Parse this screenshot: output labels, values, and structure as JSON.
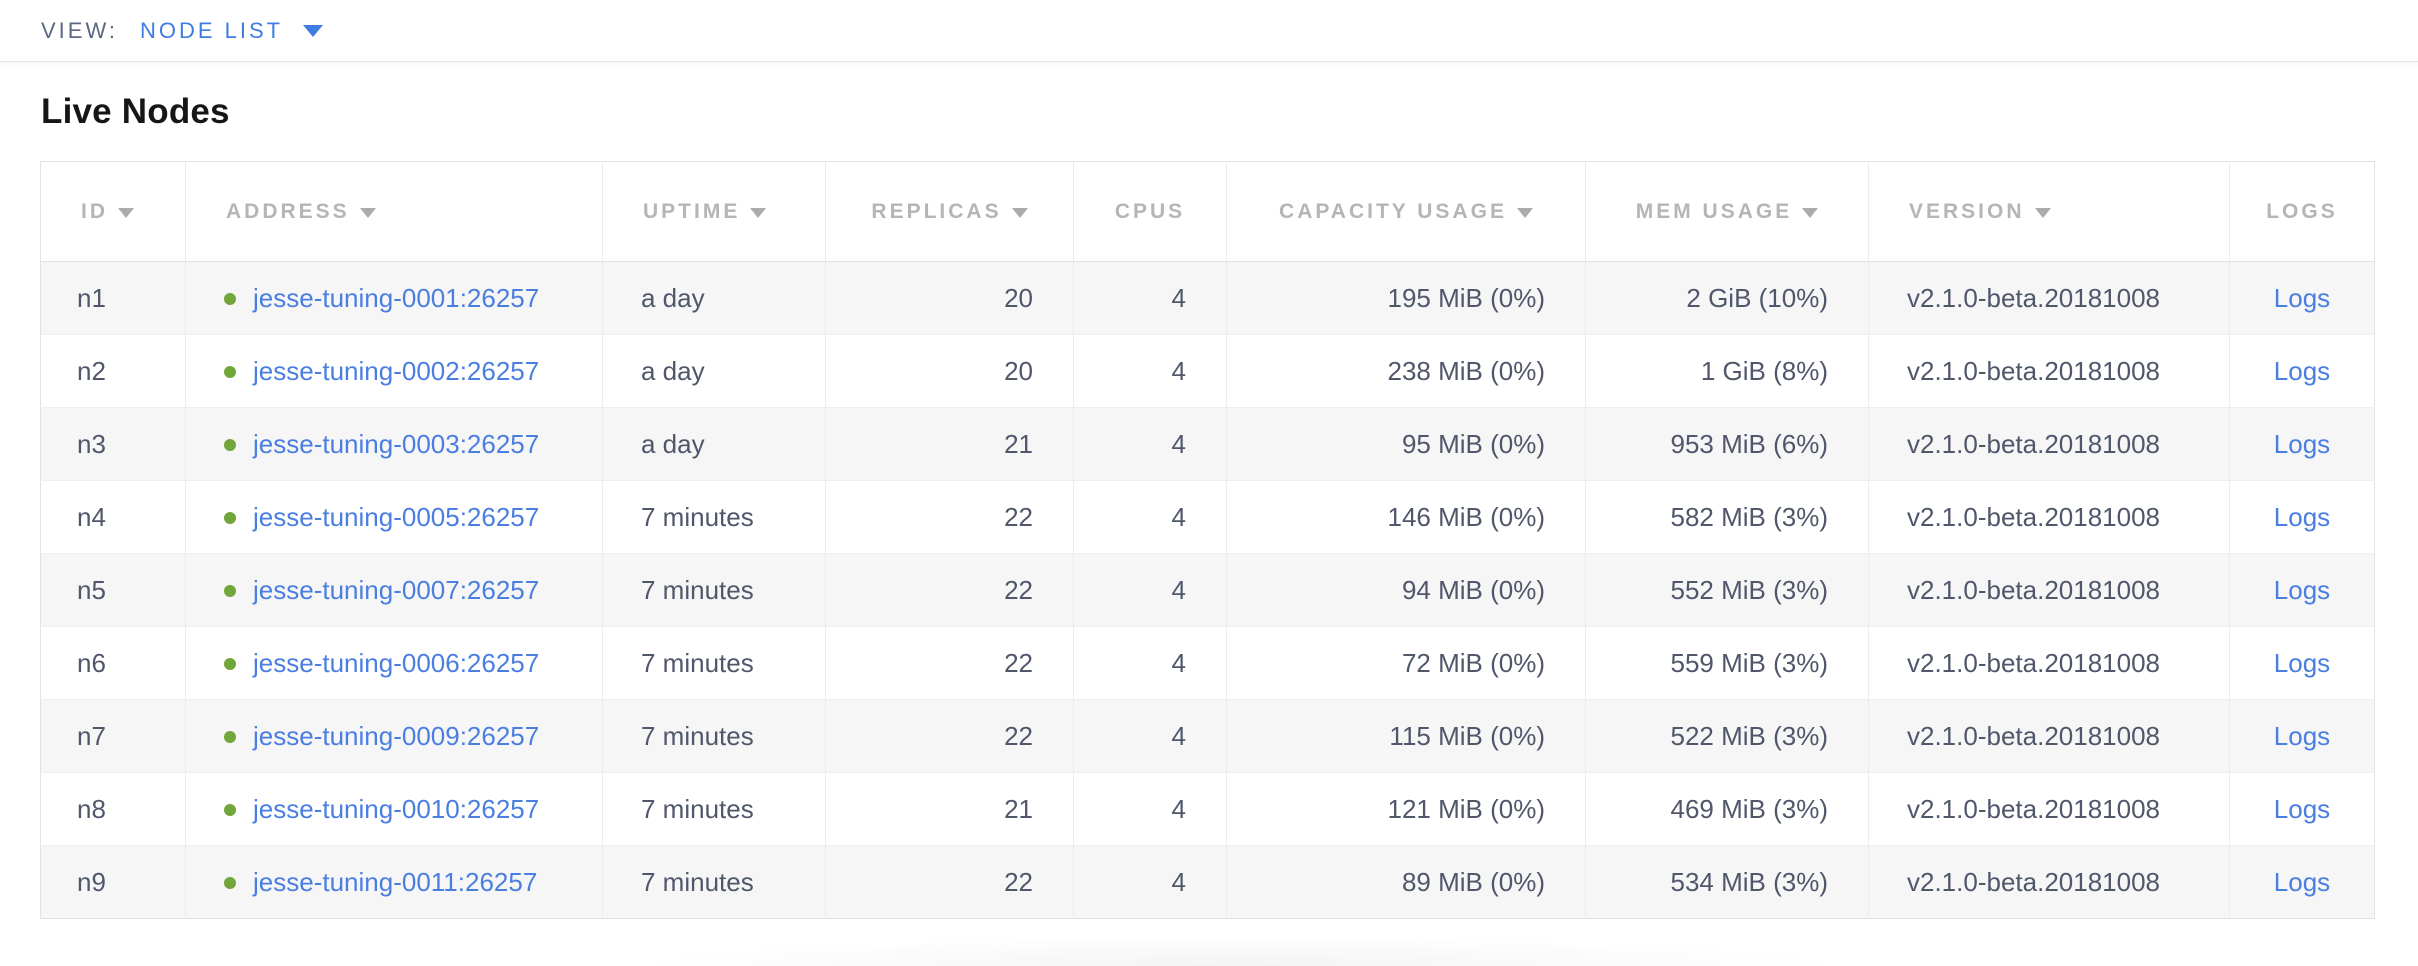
{
  "view_bar": {
    "label": "VIEW:",
    "selected": "NODE LIST",
    "dropdown_icon": "caret-down-icon"
  },
  "page": {
    "title": "Live Nodes"
  },
  "colors": {
    "link_blue": "#4a7ee0",
    "selector_blue": "#3f7ce2",
    "live_dot_green": "#71a63b",
    "header_gray": "#b5b5b8",
    "body_text": "#50576b",
    "row_stripe": "#f6f6f7",
    "table_border": "#e2e2e5"
  },
  "table": {
    "columns": [
      {
        "key": "id",
        "label": "ID",
        "sortable": true,
        "header_align": "left",
        "data_align": "left"
      },
      {
        "key": "address",
        "label": "ADDRESS",
        "sortable": true,
        "header_align": "left",
        "data_align": "left"
      },
      {
        "key": "uptime",
        "label": "UPTIME",
        "sortable": true,
        "header_align": "left",
        "data_align": "left"
      },
      {
        "key": "replicas",
        "label": "REPLICAS",
        "sortable": true,
        "header_align": "center",
        "data_align": "right"
      },
      {
        "key": "cpus",
        "label": "CPUS",
        "sortable": false,
        "header_align": "center",
        "data_align": "right"
      },
      {
        "key": "capacity",
        "label": "CAPACITY USAGE",
        "sortable": true,
        "header_align": "center",
        "data_align": "right"
      },
      {
        "key": "mem",
        "label": "MEM USAGE",
        "sortable": true,
        "header_align": "center",
        "data_align": "right"
      },
      {
        "key": "version",
        "label": "VERSION",
        "sortable": true,
        "header_align": "left",
        "data_align": "left"
      },
      {
        "key": "logs",
        "label": "LOGS",
        "sortable": false,
        "header_align": "center",
        "data_align": "center"
      }
    ],
    "rows": [
      {
        "id": "n1",
        "status": "live",
        "address": "jesse-tuning-0001:26257",
        "uptime": "a day",
        "replicas": "20",
        "cpus": "4",
        "capacity": "195 MiB (0%)",
        "mem": "2 GiB (10%)",
        "version": "v2.1.0-beta.20181008",
        "logs": "Logs"
      },
      {
        "id": "n2",
        "status": "live",
        "address": "jesse-tuning-0002:26257",
        "uptime": "a day",
        "replicas": "20",
        "cpus": "4",
        "capacity": "238 MiB (0%)",
        "mem": "1 GiB (8%)",
        "version": "v2.1.0-beta.20181008",
        "logs": "Logs"
      },
      {
        "id": "n3",
        "status": "live",
        "address": "jesse-tuning-0003:26257",
        "uptime": "a day",
        "replicas": "21",
        "cpus": "4",
        "capacity": "95 MiB (0%)",
        "mem": "953 MiB (6%)",
        "version": "v2.1.0-beta.20181008",
        "logs": "Logs"
      },
      {
        "id": "n4",
        "status": "live",
        "address": "jesse-tuning-0005:26257",
        "uptime": "7 minutes",
        "replicas": "22",
        "cpus": "4",
        "capacity": "146 MiB (0%)",
        "mem": "582 MiB (3%)",
        "version": "v2.1.0-beta.20181008",
        "logs": "Logs"
      },
      {
        "id": "n5",
        "status": "live",
        "address": "jesse-tuning-0007:26257",
        "uptime": "7 minutes",
        "replicas": "22",
        "cpus": "4",
        "capacity": "94 MiB (0%)",
        "mem": "552 MiB (3%)",
        "version": "v2.1.0-beta.20181008",
        "logs": "Logs"
      },
      {
        "id": "n6",
        "status": "live",
        "address": "jesse-tuning-0006:26257",
        "uptime": "7 minutes",
        "replicas": "22",
        "cpus": "4",
        "capacity": "72 MiB (0%)",
        "mem": "559 MiB (3%)",
        "version": "v2.1.0-beta.20181008",
        "logs": "Logs"
      },
      {
        "id": "n7",
        "status": "live",
        "address": "jesse-tuning-0009:26257",
        "uptime": "7 minutes",
        "replicas": "22",
        "cpus": "4",
        "capacity": "115 MiB (0%)",
        "mem": "522 MiB (3%)",
        "version": "v2.1.0-beta.20181008",
        "logs": "Logs"
      },
      {
        "id": "n8",
        "status": "live",
        "address": "jesse-tuning-0010:26257",
        "uptime": "7 minutes",
        "replicas": "21",
        "cpus": "4",
        "capacity": "121 MiB (0%)",
        "mem": "469 MiB (3%)",
        "version": "v2.1.0-beta.20181008",
        "logs": "Logs"
      },
      {
        "id": "n9",
        "status": "live",
        "address": "jesse-tuning-0011:26257",
        "uptime": "7 minutes",
        "replicas": "22",
        "cpus": "4",
        "capacity": "89 MiB (0%)",
        "mem": "534 MiB (3%)",
        "version": "v2.1.0-beta.20181008",
        "logs": "Logs"
      }
    ]
  }
}
